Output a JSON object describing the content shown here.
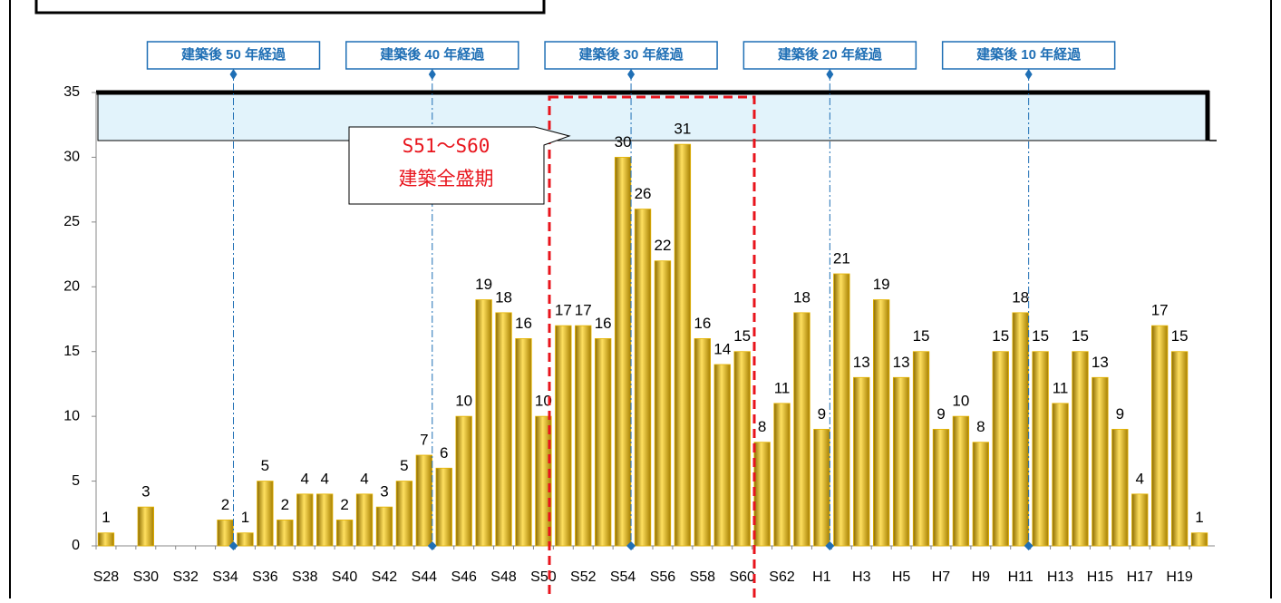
{
  "chart_data": {
    "type": "bar",
    "categories": [
      "S28",
      null,
      "S30",
      null,
      "S32",
      null,
      "S34",
      null,
      "S36",
      null,
      "S38",
      null,
      "S40",
      null,
      "S42",
      null,
      "S44",
      null,
      "S46",
      null,
      "S48",
      null,
      "S50",
      null,
      "S52",
      null,
      "S54",
      null,
      "S56",
      null,
      "S58",
      null,
      "S60",
      null,
      "S62",
      null,
      "H1",
      null,
      "H3",
      null,
      "H5",
      null,
      "H7",
      null,
      "H9",
      null,
      "H11",
      null,
      "H13",
      null,
      "H15",
      null,
      "H17",
      null,
      "H19",
      null
    ],
    "values": [
      1,
      0,
      3,
      0,
      0,
      0,
      2,
      1,
      5,
      2,
      4,
      4,
      2,
      4,
      3,
      5,
      7,
      6,
      10,
      19,
      18,
      16,
      10,
      17,
      17,
      16,
      30,
      26,
      22,
      31,
      16,
      14,
      15,
      8,
      11,
      18,
      9,
      21,
      13,
      19,
      13,
      15,
      9,
      10,
      8,
      15,
      18,
      15,
      11,
      15,
      13,
      9,
      4,
      17,
      15,
      1
    ],
    "color": "#e6b400",
    "ylim": [
      0,
      35
    ],
    "yticks": [
      0,
      5,
      10,
      15,
      20,
      25,
      30,
      35
    ],
    "annotations": [
      "建築後 50 年経過",
      "建築後 40 年経過",
      "建築後 30 年経過",
      "建築後 20 年経過",
      "建築後 10 年経過"
    ],
    "callout": [
      "S51～S60",
      "建築全盛期"
    ]
  }
}
